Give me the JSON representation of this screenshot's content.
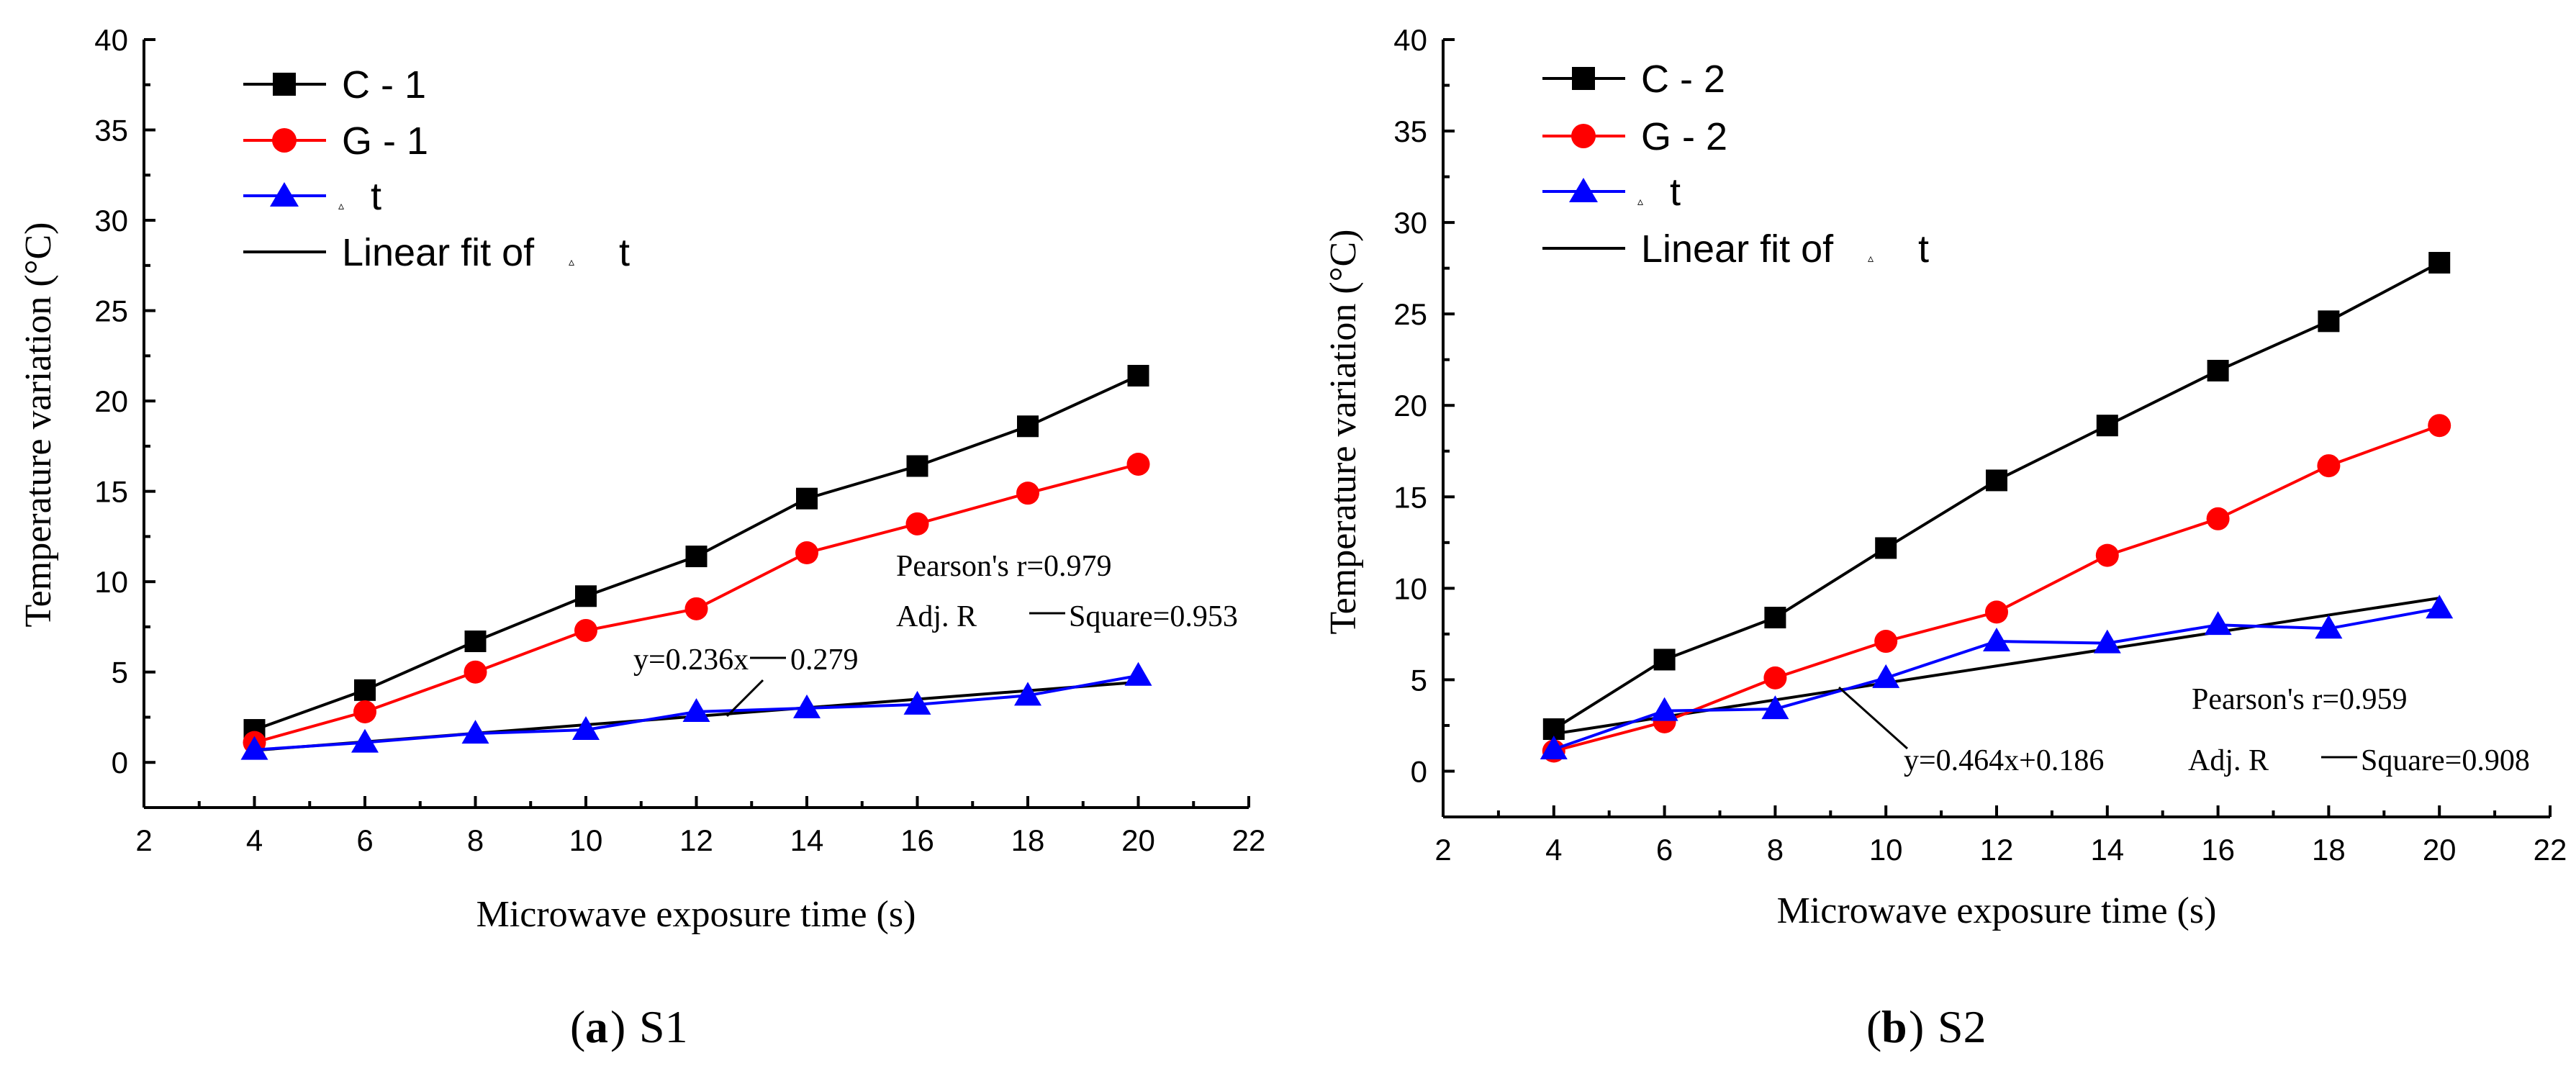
{
  "chart_data": [
    {
      "type": "line",
      "panel": "a",
      "caption_letter": "a",
      "caption_text": "S1",
      "xlabel": "Microwave exposure time (s)",
      "ylabel": "Temperature variation (°C)",
      "xlim": [
        2,
        22
      ],
      "ylim": [
        -2.5,
        40
      ],
      "xticks": [
        "2",
        "4",
        "6",
        "8",
        "10",
        "12",
        "14",
        "16",
        "18",
        "20",
        "22"
      ],
      "yticks": [
        "0",
        "5",
        "10",
        "15",
        "20",
        "25",
        "30",
        "35",
        "40"
      ],
      "x": [
        4,
        6,
        8,
        10,
        12,
        14,
        16,
        18,
        20
      ],
      "series": [
        {
          "name": "C - 1",
          "label_main": "C - 1",
          "color": "#000000",
          "marker": "square",
          "values": [
            1.8,
            4.0,
            6.7,
            9.2,
            11.4,
            14.6,
            16.4,
            18.6,
            21.4
          ]
        },
        {
          "name": "G - 1",
          "label_main": "G - 1",
          "color": "#ff0000",
          "marker": "circle",
          "values": [
            1.1,
            2.8,
            5.0,
            7.3,
            8.5,
            11.6,
            13.2,
            14.9,
            16.5
          ]
        },
        {
          "name": "Δt",
          "label_main": "t",
          "label_small": "▵",
          "color": "#0000ff",
          "marker": "triangle",
          "values": [
            0.7,
            1.1,
            1.6,
            1.8,
            2.8,
            3.0,
            3.2,
            3.7,
            4.8
          ]
        }
      ],
      "fit": {
        "name": "Linear fit of Δt",
        "label_main": "Linear fit of",
        "label_small": "▵",
        "label_tail": "t",
        "color": "#000000",
        "slope": 0.236,
        "intercept": -0.279,
        "x_range": [
          4,
          20
        ]
      },
      "annotations": {
        "pearson": "Pearson's r=0.979",
        "adj_prefix": "Adj. R",
        "adj_suffix": "Square=0.953",
        "equation": "y=0.236x",
        "equation_suffix": "0.279"
      }
    },
    {
      "type": "line",
      "panel": "b",
      "caption_letter": "b",
      "caption_text": "S2",
      "xlabel": "Microwave exposure time (s)",
      "ylabel": "Temperature variation (°C)",
      "xlim": [
        2,
        22
      ],
      "ylim": [
        -2.5,
        40
      ],
      "xticks": [
        "2",
        "4",
        "6",
        "8",
        "10",
        "12",
        "14",
        "16",
        "18",
        "20",
        "22"
      ],
      "yticks": [
        "0",
        "5",
        "10",
        "15",
        "20",
        "25",
        "30",
        "35",
        "40"
      ],
      "x": [
        4,
        6,
        8,
        10,
        12,
        14,
        16,
        18,
        20
      ],
      "series": [
        {
          "name": "C - 2",
          "label_main": "C - 2",
          "color": "#000000",
          "marker": "square",
          "values": [
            2.3,
            6.1,
            8.4,
            12.2,
            15.9,
            18.9,
            21.9,
            24.6,
            27.8
          ]
        },
        {
          "name": "G - 2",
          "label_main": "G - 2",
          "color": "#ff0000",
          "marker": "circle",
          "values": [
            1.1,
            2.7,
            5.1,
            7.1,
            8.7,
            11.8,
            13.8,
            16.7,
            18.9
          ]
        },
        {
          "name": "Δt",
          "label_main": "t",
          "label_small": "▵",
          "color": "#0000ff",
          "marker": "triangle",
          "values": [
            1.2,
            3.3,
            3.4,
            5.1,
            7.1,
            7.0,
            8.0,
            7.8,
            8.9
          ]
        }
      ],
      "fit": {
        "name": "Linear fit of Δt",
        "label_main": "Linear fit of",
        "label_small": "▵",
        "label_tail": "t",
        "color": "#000000",
        "slope": 0.464,
        "intercept": 0.186,
        "x_range": [
          4,
          20
        ]
      },
      "annotations": {
        "pearson": "Pearson's r=0.959",
        "adj_prefix": "Adj. R",
        "adj_suffix": "Square=0.908",
        "equation": "y=0.464x+0.186"
      }
    }
  ]
}
